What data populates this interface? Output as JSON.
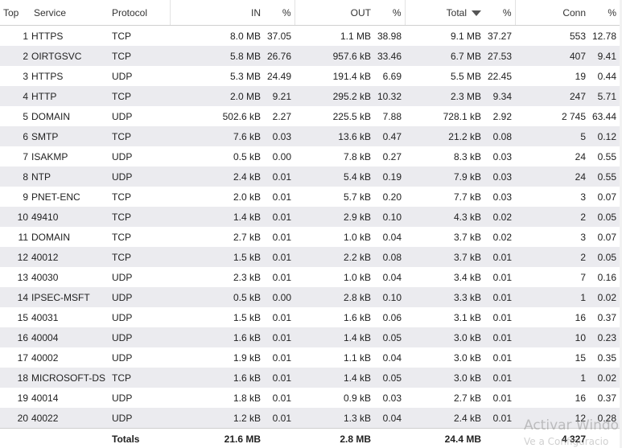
{
  "columns": {
    "top": "Top",
    "service": "Service",
    "protocol": "Protocol",
    "in": "IN",
    "in_pct": "%",
    "out": "OUT",
    "out_pct": "%",
    "total": "Total",
    "total_pct": "%",
    "conn": "Conn",
    "conn_pct": "%"
  },
  "sort": {
    "column": "Total",
    "direction": "descending",
    "icon": "sort-desc-icon"
  },
  "rows": [
    {
      "top": "1",
      "service": "HTTPS",
      "protocol": "TCP",
      "in": "8.0 MB",
      "in_pct": "37.05",
      "out": "1.1 MB",
      "out_pct": "38.98",
      "total": "9.1 MB",
      "total_pct": "37.27",
      "conn": "553",
      "conn_pct": "12.78"
    },
    {
      "top": "2",
      "service": "OIRTGSVC",
      "protocol": "TCP",
      "in": "5.8 MB",
      "in_pct": "26.76",
      "out": "957.6 kB",
      "out_pct": "33.46",
      "total": "6.7 MB",
      "total_pct": "27.53",
      "conn": "407",
      "conn_pct": "9.41"
    },
    {
      "top": "3",
      "service": "HTTPS",
      "protocol": "UDP",
      "in": "5.3 MB",
      "in_pct": "24.49",
      "out": "191.4 kB",
      "out_pct": "6.69",
      "total": "5.5 MB",
      "total_pct": "22.45",
      "conn": "19",
      "conn_pct": "0.44"
    },
    {
      "top": "4",
      "service": "HTTP",
      "protocol": "TCP",
      "in": "2.0 MB",
      "in_pct": "9.21",
      "out": "295.2 kB",
      "out_pct": "10.32",
      "total": "2.3 MB",
      "total_pct": "9.34",
      "conn": "247",
      "conn_pct": "5.71"
    },
    {
      "top": "5",
      "service": "DOMAIN",
      "protocol": "UDP",
      "in": "502.6 kB",
      "in_pct": "2.27",
      "out": "225.5 kB",
      "out_pct": "7.88",
      "total": "728.1 kB",
      "total_pct": "2.92",
      "conn": "2 745",
      "conn_pct": "63.44"
    },
    {
      "top": "6",
      "service": "SMTP",
      "protocol": "TCP",
      "in": "7.6 kB",
      "in_pct": "0.03",
      "out": "13.6 kB",
      "out_pct": "0.47",
      "total": "21.2 kB",
      "total_pct": "0.08",
      "conn": "5",
      "conn_pct": "0.12"
    },
    {
      "top": "7",
      "service": "ISAKMP",
      "protocol": "UDP",
      "in": "0.5 kB",
      "in_pct": "0.00",
      "out": "7.8 kB",
      "out_pct": "0.27",
      "total": "8.3 kB",
      "total_pct": "0.03",
      "conn": "24",
      "conn_pct": "0.55"
    },
    {
      "top": "8",
      "service": "NTP",
      "protocol": "UDP",
      "in": "2.4 kB",
      "in_pct": "0.01",
      "out": "5.4 kB",
      "out_pct": "0.19",
      "total": "7.9 kB",
      "total_pct": "0.03",
      "conn": "24",
      "conn_pct": "0.55"
    },
    {
      "top": "9",
      "service": "PNET-ENC",
      "protocol": "TCP",
      "in": "2.0 kB",
      "in_pct": "0.01",
      "out": "5.7 kB",
      "out_pct": "0.20",
      "total": "7.7 kB",
      "total_pct": "0.03",
      "conn": "3",
      "conn_pct": "0.07"
    },
    {
      "top": "10",
      "service": "49410",
      "protocol": "TCP",
      "in": "1.4 kB",
      "in_pct": "0.01",
      "out": "2.9 kB",
      "out_pct": "0.10",
      "total": "4.3 kB",
      "total_pct": "0.02",
      "conn": "2",
      "conn_pct": "0.05"
    },
    {
      "top": "11",
      "service": "DOMAIN",
      "protocol": "TCP",
      "in": "2.7 kB",
      "in_pct": "0.01",
      "out": "1.0 kB",
      "out_pct": "0.04",
      "total": "3.7 kB",
      "total_pct": "0.02",
      "conn": "3",
      "conn_pct": "0.07"
    },
    {
      "top": "12",
      "service": "40012",
      "protocol": "TCP",
      "in": "1.5 kB",
      "in_pct": "0.01",
      "out": "2.2 kB",
      "out_pct": "0.08",
      "total": "3.7 kB",
      "total_pct": "0.01",
      "conn": "2",
      "conn_pct": "0.05"
    },
    {
      "top": "13",
      "service": "40030",
      "protocol": "UDP",
      "in": "2.3 kB",
      "in_pct": "0.01",
      "out": "1.0 kB",
      "out_pct": "0.04",
      "total": "3.4 kB",
      "total_pct": "0.01",
      "conn": "7",
      "conn_pct": "0.16"
    },
    {
      "top": "14",
      "service": "IPSEC-MSFT",
      "protocol": "UDP",
      "in": "0.5 kB",
      "in_pct": "0.00",
      "out": "2.8 kB",
      "out_pct": "0.10",
      "total": "3.3 kB",
      "total_pct": "0.01",
      "conn": "1",
      "conn_pct": "0.02"
    },
    {
      "top": "15",
      "service": "40031",
      "protocol": "UDP",
      "in": "1.5 kB",
      "in_pct": "0.01",
      "out": "1.6 kB",
      "out_pct": "0.06",
      "total": "3.1 kB",
      "total_pct": "0.01",
      "conn": "16",
      "conn_pct": "0.37"
    },
    {
      "top": "16",
      "service": "40004",
      "protocol": "UDP",
      "in": "1.6 kB",
      "in_pct": "0.01",
      "out": "1.4 kB",
      "out_pct": "0.05",
      "total": "3.0 kB",
      "total_pct": "0.01",
      "conn": "10",
      "conn_pct": "0.23"
    },
    {
      "top": "17",
      "service": "40002",
      "protocol": "UDP",
      "in": "1.9 kB",
      "in_pct": "0.01",
      "out": "1.1 kB",
      "out_pct": "0.04",
      "total": "3.0 kB",
      "total_pct": "0.01",
      "conn": "15",
      "conn_pct": "0.35"
    },
    {
      "top": "18",
      "service": "MICROSOFT-DS",
      "protocol": "TCP",
      "in": "1.6 kB",
      "in_pct": "0.01",
      "out": "1.4 kB",
      "out_pct": "0.05",
      "total": "3.0 kB",
      "total_pct": "0.01",
      "conn": "1",
      "conn_pct": "0.02"
    },
    {
      "top": "19",
      "service": "40014",
      "protocol": "UDP",
      "in": "1.8 kB",
      "in_pct": "0.01",
      "out": "0.9 kB",
      "out_pct": "0.03",
      "total": "2.7 kB",
      "total_pct": "0.01",
      "conn": "16",
      "conn_pct": "0.37"
    },
    {
      "top": "20",
      "service": "40022",
      "protocol": "UDP",
      "in": "1.2 kB",
      "in_pct": "0.01",
      "out": "1.3 kB",
      "out_pct": "0.04",
      "total": "2.4 kB",
      "total_pct": "0.01",
      "conn": "12",
      "conn_pct": "0.28"
    }
  ],
  "totals": {
    "label": "Totals",
    "in": "21.6 MB",
    "out": "2.8 MB",
    "total": "24.4 MB",
    "conn": "4 327"
  },
  "watermark": {
    "line1": "Activar Windo",
    "line2": "Ve a Configuracio"
  },
  "colors": {
    "row_alt_bg": "#ebebef",
    "footer_accent": "#2f97b8"
  }
}
